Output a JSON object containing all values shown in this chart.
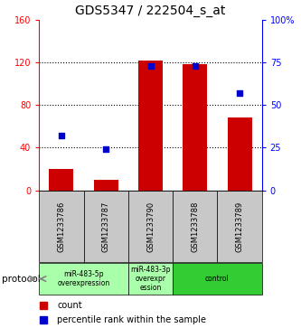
{
  "title": "GDS5347 / 222504_s_at",
  "samples": [
    "GSM1233786",
    "GSM1233787",
    "GSM1233790",
    "GSM1233788",
    "GSM1233789"
  ],
  "counts": [
    20,
    10,
    122,
    118,
    68
  ],
  "percentiles": [
    32,
    24,
    73,
    73,
    57
  ],
  "left_ylim": [
    0,
    160
  ],
  "right_ylim": [
    0,
    100
  ],
  "left_yticks": [
    0,
    40,
    80,
    120,
    160
  ],
  "right_yticks": [
    0,
    25,
    50,
    75,
    100
  ],
  "right_yticklabels": [
    "0",
    "25",
    "50",
    "75",
    "100%"
  ],
  "bar_color": "#cc0000",
  "scatter_color": "#0000cc",
  "grid_color": "#000000",
  "bg_color": "#ffffff",
  "protocol_groups": [
    {
      "label": "miR-483-5p\noverexpression",
      "start": 0,
      "end": 2,
      "color": "#aaffaa"
    },
    {
      "label": "miR-483-3p\noverexpr\nession",
      "start": 2,
      "end": 3,
      "color": "#aaffaa"
    },
    {
      "label": "control",
      "start": 3,
      "end": 5,
      "color": "#33cc33"
    }
  ],
  "sample_bg_color": "#c8c8c8",
  "title_fontsize": 10,
  "bar_width": 0.55
}
